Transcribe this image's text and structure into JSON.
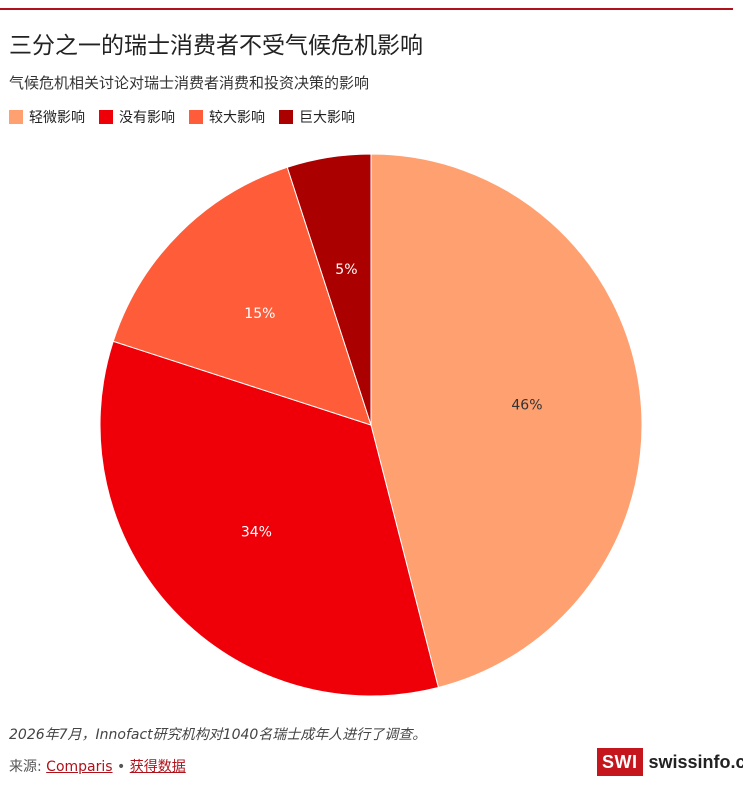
{
  "header": {
    "title": "三分之一的瑞士消费者不受气候危机影响",
    "subtitle": "气候危机相关讨论对瑞士消费者消费和投资决策的影响"
  },
  "chart_data": {
    "type": "pie",
    "title": "三分之一的瑞士消费者不受气候危机影响",
    "subtitle": "气候危机相关讨论对瑞士消费者消费和投资决策的影响",
    "legend_position": "top-left",
    "slices": [
      {
        "name": "轻微影响",
        "value": 46,
        "label": "46%",
        "color": "#ffa070",
        "label_color": "#333333"
      },
      {
        "name": "没有影响",
        "value": 34,
        "label": "34%",
        "color": "#ef0008",
        "label_color": "#ffffff"
      },
      {
        "name": "较大影响",
        "value": 15,
        "label": "15%",
        "color": "#ff5c3a",
        "label_color": "#ffffff"
      },
      {
        "name": "巨大影响",
        "value": 5,
        "label": "5%",
        "color": "#aa0000",
        "label_color": "#ffffff"
      }
    ]
  },
  "footer": {
    "note": "2026年7月，Innofact研究机构对1040名瑞士成年人进行了调查。",
    "source_label": "来源: ",
    "source_link": "Comparis",
    "separator": " • ",
    "data_link": "获得数据",
    "logo_box": "SWI",
    "logo_text": "swissinfo.ch"
  },
  "colors": {
    "accent": "#b0121b"
  }
}
